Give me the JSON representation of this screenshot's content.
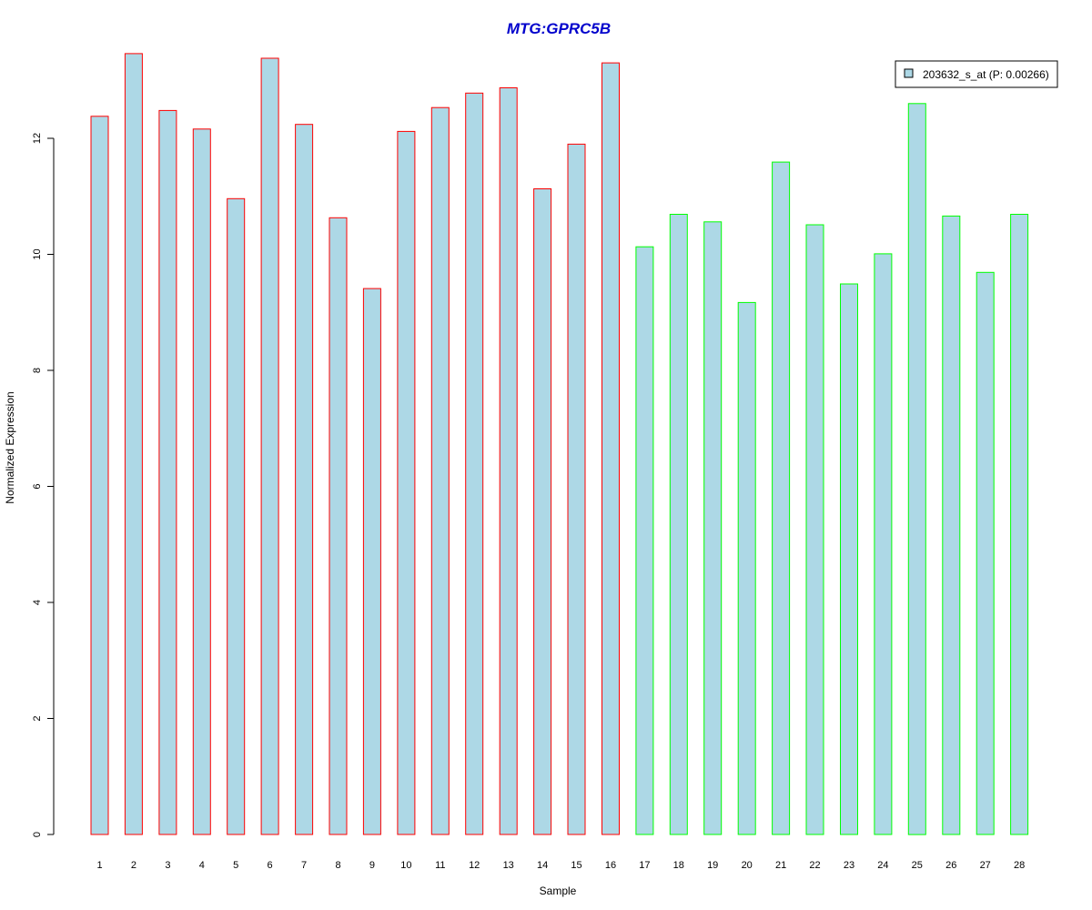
{
  "colors": {
    "title": "#0000CC",
    "bar_fill": "#ADD8E6",
    "group1_border": "#FF0000",
    "group2_border": "#00FF00",
    "axis": "#000000"
  },
  "chart_data": {
    "type": "bar",
    "title": "MTG:GPRC5B",
    "xlabel": "Sample",
    "ylabel": "Normalized Expression",
    "ylim": [
      0,
      13.5
    ],
    "yticks": [
      0,
      2,
      4,
      6,
      8,
      10,
      12
    ],
    "grid": false,
    "legend": {
      "position": "top-right",
      "label": "203632_s_at (P: 0.00266)"
    },
    "categories": [
      "1",
      "2",
      "3",
      "4",
      "5",
      "6",
      "7",
      "8",
      "9",
      "10",
      "11",
      "12",
      "13",
      "14",
      "15",
      "16",
      "17",
      "18",
      "19",
      "20",
      "21",
      "22",
      "23",
      "24",
      "25",
      "26",
      "27",
      "28"
    ],
    "values": [
      12.38,
      13.46,
      12.48,
      12.16,
      10.96,
      13.38,
      12.24,
      10.63,
      9.41,
      12.12,
      12.53,
      12.78,
      12.87,
      11.13,
      11.9,
      13.3,
      10.13,
      10.69,
      10.56,
      9.17,
      11.59,
      10.51,
      9.49,
      10.01,
      12.6,
      10.66,
      9.69,
      10.69
    ],
    "groups": [
      1,
      1,
      1,
      1,
      1,
      1,
      1,
      1,
      1,
      1,
      1,
      1,
      1,
      1,
      1,
      1,
      2,
      2,
      2,
      2,
      2,
      2,
      2,
      2,
      2,
      2,
      2,
      2
    ]
  }
}
